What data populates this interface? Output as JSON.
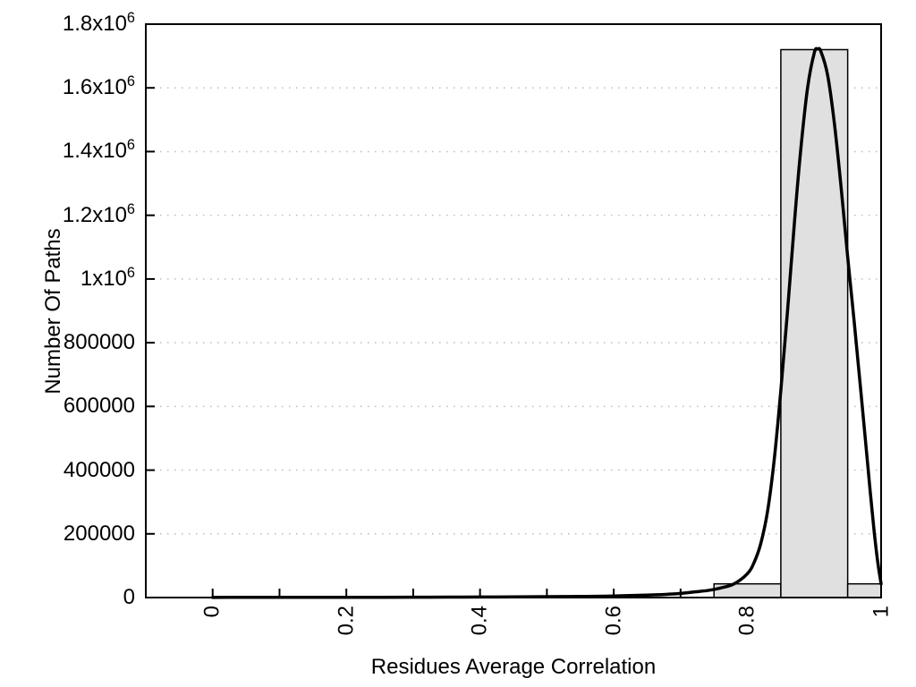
{
  "chart_data": {
    "type": "bar",
    "subtype": "histogram with fitted distribution curve",
    "title": "",
    "xlabel": "Residues Average Correlation",
    "ylabel": "Number Of Paths",
    "xlim": [
      -0.1,
      1.0
    ],
    "ylim": [
      0,
      1800000
    ],
    "legend": "none",
    "x_ticks": {
      "labeled_values": [
        0,
        0.2,
        0.4,
        0.6,
        0.8,
        1
      ],
      "labels": [
        "0",
        "0.2",
        "0.4",
        "0.6",
        "0.8",
        "1"
      ],
      "minor_step": 0.1,
      "label_rotation_deg": -90
    },
    "y_ticks": {
      "values": [
        0,
        200000,
        400000,
        600000,
        800000,
        1000000,
        1200000,
        1400000,
        1600000,
        1800000
      ],
      "labels": [
        "0",
        "200000",
        "400000",
        "600000",
        "800000",
        "1x10^6",
        "1.2x10^6",
        "1.4x10^6",
        "1.6x10^6",
        "1.8x10^6"
      ]
    },
    "grid": {
      "horizontal": true,
      "vertical": false,
      "style": "dotted",
      "color": "#bcbcbc"
    },
    "histogram": {
      "fill": "#e0e0e0",
      "stroke": "#000000",
      "bins": [
        {
          "x0": 0.75,
          "x1": 0.85,
          "count": 43000
        },
        {
          "x0": 0.85,
          "x1": 0.95,
          "count": 1720000
        },
        {
          "x0": 0.95,
          "x1": 1.0,
          "count": 43000
        }
      ]
    },
    "fit_curve": {
      "color": "#000000",
      "peak": {
        "x": 0.905,
        "y": 1722000
      },
      "points": [
        [
          0,
          500
        ],
        [
          0.05,
          550
        ],
        [
          0.1,
          620
        ],
        [
          0.15,
          700
        ],
        [
          0.2,
          820
        ],
        [
          0.25,
          950
        ],
        [
          0.3,
          1100
        ],
        [
          0.35,
          1350
        ],
        [
          0.4,
          1650
        ],
        [
          0.45,
          2100
        ],
        [
          0.5,
          2700
        ],
        [
          0.55,
          3600
        ],
        [
          0.6,
          5000
        ],
        [
          0.65,
          7500
        ],
        [
          0.68,
          10000
        ],
        [
          0.7,
          13000
        ],
        [
          0.72,
          17500
        ],
        [
          0.74,
          22000
        ],
        [
          0.76,
          30000
        ],
        [
          0.78,
          43000
        ],
        [
          0.8,
          75000
        ],
        [
          0.81,
          110000
        ],
        [
          0.82,
          170000
        ],
        [
          0.83,
          270000
        ],
        [
          0.84,
          430000
        ],
        [
          0.85,
          650000
        ],
        [
          0.86,
          900000
        ],
        [
          0.87,
          1170000
        ],
        [
          0.88,
          1410000
        ],
        [
          0.89,
          1600000
        ],
        [
          0.9,
          1710000
        ],
        [
          0.905,
          1722000
        ],
        [
          0.91,
          1714000
        ],
        [
          0.92,
          1640000
        ],
        [
          0.93,
          1490000
        ],
        [
          0.94,
          1290000
        ],
        [
          0.95,
          1070000
        ],
        [
          0.96,
          860000
        ],
        [
          0.97,
          640000
        ],
        [
          0.98,
          415000
        ],
        [
          0.985,
          305000
        ],
        [
          0.99,
          200000
        ],
        [
          0.995,
          110000
        ],
        [
          1.0,
          43000
        ]
      ]
    }
  }
}
